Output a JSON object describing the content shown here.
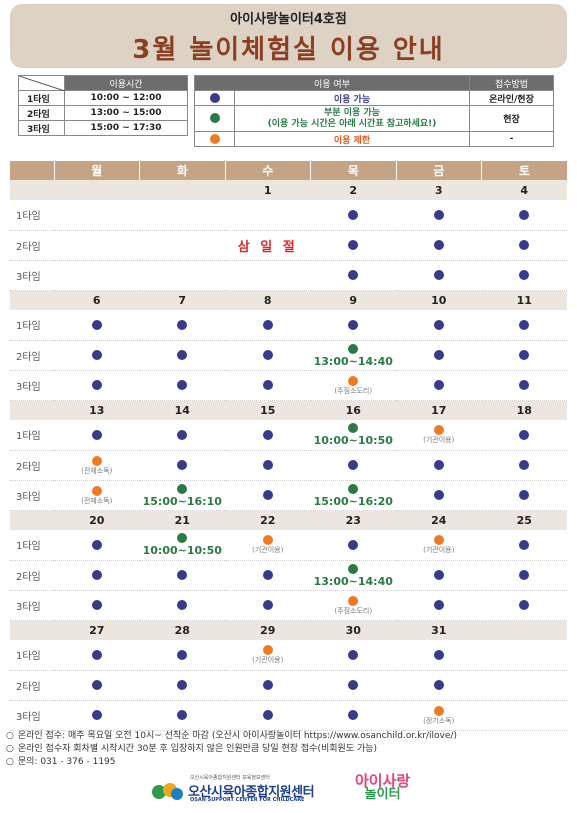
{
  "header": {
    "subtitle": "아이사랑놀이터4호점",
    "title": "3월 놀이체험실 이용 안내"
  },
  "legend_times": {
    "header": "이용시간",
    "rows": [
      {
        "name": "1타임",
        "time": "10:00 ~ 12:00"
      },
      {
        "name": "2타임",
        "time": "13:00 ~ 15:00"
      },
      {
        "name": "3타임",
        "time": "15:00 ~ 17:30"
      }
    ]
  },
  "legend_availability": {
    "header_status": "이용 여부",
    "header_method": "접수방법",
    "rows": [
      {
        "dot": "blue",
        "label": "이용 가능",
        "note": "",
        "method": "온라인/현장"
      },
      {
        "dot": "green",
        "label": "부분 이용 가능",
        "note": "(이용 가능 시간은 아래 시간표 참고하세요!)",
        "method": "현장"
      },
      {
        "dot": "orange",
        "label": "이용 제한",
        "note": "",
        "method": "-"
      }
    ],
    "colors": {
      "blue": "#3a3a8a",
      "green": "#2a7a46",
      "orange": "#f07a22"
    }
  },
  "calendar": {
    "weekdays": [
      "월",
      "화",
      "수",
      "목",
      "금",
      "토"
    ],
    "slot_labels": [
      "1타임",
      "2타임",
      "3타임"
    ],
    "weeks": [
      {
        "dates": [
          "",
          "",
          "1",
          "2",
          "3",
          "4"
        ],
        "slots": [
          [
            {
              "type": "empty"
            },
            {
              "type": "empty"
            },
            {
              "type": "empty"
            },
            {
              "type": "blue"
            },
            {
              "type": "blue"
            },
            {
              "type": "blue"
            }
          ],
          [
            {
              "type": "empty"
            },
            {
              "type": "empty"
            },
            {
              "type": "holiday",
              "text": "삼 일 절"
            },
            {
              "type": "blue"
            },
            {
              "type": "blue"
            },
            {
              "type": "blue"
            }
          ],
          [
            {
              "type": "empty"
            },
            {
              "type": "empty"
            },
            {
              "type": "empty"
            },
            {
              "type": "blue"
            },
            {
              "type": "blue"
            },
            {
              "type": "blue"
            }
          ]
        ]
      },
      {
        "dates": [
          "6",
          "7",
          "8",
          "9",
          "10",
          "11"
        ],
        "slots": [
          [
            {
              "type": "blue"
            },
            {
              "type": "blue"
            },
            {
              "type": "blue"
            },
            {
              "type": "blue"
            },
            {
              "type": "blue"
            },
            {
              "type": "blue"
            }
          ],
          [
            {
              "type": "blue"
            },
            {
              "type": "blue"
            },
            {
              "type": "blue"
            },
            {
              "type": "green",
              "text": "13:00~14:40"
            },
            {
              "type": "blue"
            },
            {
              "type": "blue"
            }
          ],
          [
            {
              "type": "blue"
            },
            {
              "type": "blue"
            },
            {
              "type": "blue"
            },
            {
              "type": "orange",
              "text": "(주짐소도리)"
            },
            {
              "type": "blue"
            },
            {
              "type": "blue"
            }
          ]
        ]
      },
      {
        "dates": [
          "13",
          "14",
          "15",
          "16",
          "17",
          "18"
        ],
        "slots": [
          [
            {
              "type": "blue"
            },
            {
              "type": "blue"
            },
            {
              "type": "blue"
            },
            {
              "type": "green",
              "text": "10:00~10:50"
            },
            {
              "type": "orange",
              "text": "(기관이용)"
            },
            {
              "type": "blue"
            }
          ],
          [
            {
              "type": "orange",
              "text": "(전체소독)"
            },
            {
              "type": "blue"
            },
            {
              "type": "blue"
            },
            {
              "type": "blue"
            },
            {
              "type": "blue"
            },
            {
              "type": "blue"
            }
          ],
          [
            {
              "type": "orange",
              "text": "(전체소독)"
            },
            {
              "type": "green",
              "text": "15:00~16:10"
            },
            {
              "type": "blue"
            },
            {
              "type": "green",
              "text": "15:00~16:20"
            },
            {
              "type": "blue"
            },
            {
              "type": "blue"
            }
          ]
        ]
      },
      {
        "dates": [
          "20",
          "21",
          "22",
          "23",
          "24",
          "25"
        ],
        "slots": [
          [
            {
              "type": "blue"
            },
            {
              "type": "green",
              "text": "10:00~10:50"
            },
            {
              "type": "orange",
              "text": "(기관이용)"
            },
            {
              "type": "blue"
            },
            {
              "type": "orange",
              "text": "(기관이용)"
            },
            {
              "type": "blue"
            }
          ],
          [
            {
              "type": "blue"
            },
            {
              "type": "blue"
            },
            {
              "type": "blue"
            },
            {
              "type": "green",
              "text": "13:00~14:40"
            },
            {
              "type": "blue"
            },
            {
              "type": "blue"
            }
          ],
          [
            {
              "type": "blue"
            },
            {
              "type": "blue"
            },
            {
              "type": "blue"
            },
            {
              "type": "orange",
              "text": "(주짐소도리)"
            },
            {
              "type": "blue"
            },
            {
              "type": "blue"
            }
          ]
        ]
      },
      {
        "dates": [
          "27",
          "28",
          "29",
          "30",
          "31",
          ""
        ],
        "slots": [
          [
            {
              "type": "blue"
            },
            {
              "type": "blue"
            },
            {
              "type": "orange",
              "text": "(기관이용)"
            },
            {
              "type": "blue"
            },
            {
              "type": "blue"
            },
            {
              "type": "empty"
            }
          ],
          [
            {
              "type": "blue"
            },
            {
              "type": "blue"
            },
            {
              "type": "blue"
            },
            {
              "type": "blue"
            },
            {
              "type": "blue"
            },
            {
              "type": "empty"
            }
          ],
          [
            {
              "type": "blue"
            },
            {
              "type": "blue"
            },
            {
              "type": "blue"
            },
            {
              "type": "blue"
            },
            {
              "type": "orange",
              "text": "(정기소독)"
            },
            {
              "type": "empty"
            }
          ]
        ]
      }
    ]
  },
  "notes": [
    "온라인 접수: 매주 목요일 오전 10시~ 선착순 마감 (오산시 아이사랑놀이터 https://www.osanchild.or.kr/ilove/)",
    "온라인 접수자 회차별 시작시간 30분 후 입장하지 않은 인원만큼 당일 현장 접수(비회원도 가능)",
    "문의: 031 - 376 - 1195"
  ],
  "footer": {
    "org_small": "오산시육아종합지원센터 보육정보센터",
    "org_name": "오산시육아종합지원센터",
    "org_english": "OSAN SUPPORT CENTER FOR CHILDCARE",
    "brand_line1": "아이사랑",
    "brand_line2": "놀이터"
  }
}
